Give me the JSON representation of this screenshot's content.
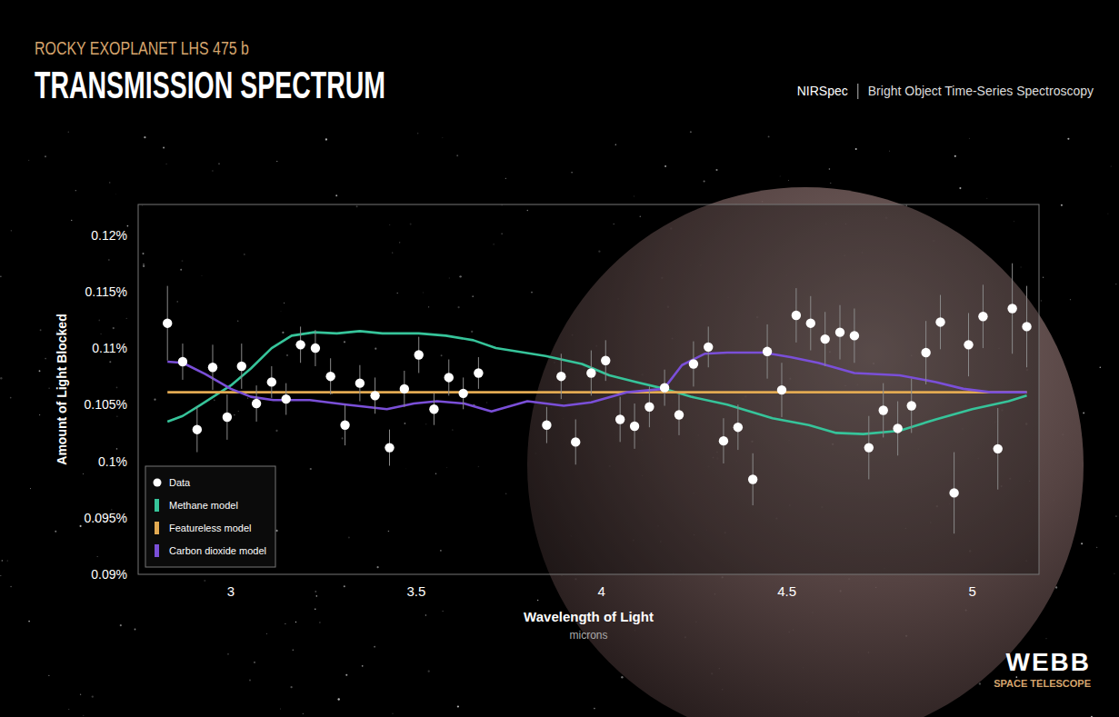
{
  "chart_data": {
    "type": "scatter",
    "subtitle": "ROCKY EXOPLANET LHS 475 b",
    "title": "TRANSMISSION SPECTRUM",
    "annotations": [
      "NIRSpec",
      "Bright Object Time-Series Spectroscopy",
      "WEBB",
      "SPACE TELESCOPE"
    ],
    "x_label": "Wavelength of Light",
    "x_unit_label": "microns",
    "y_label": "Amount of Light Blocked",
    "xlim": [
      2.75,
      5.18
    ],
    "ylim": [
      0.09,
      0.1227
    ],
    "xticks": [
      3,
      3.5,
      4,
      4.5,
      5
    ],
    "yticks": [
      {
        "value": 0.09,
        "label": "0.09%"
      },
      {
        "value": 0.095,
        "label": "0.095%"
      },
      {
        "value": 0.1,
        "label": "0.1%"
      },
      {
        "value": 0.105,
        "label": "0.105%"
      },
      {
        "value": 0.11,
        "label": "0.11%"
      },
      {
        "value": 0.115,
        "label": "0.115%"
      },
      {
        "value": 0.12,
        "label": "0.12%"
      }
    ],
    "grid": false,
    "legend": "lower left",
    "series": [
      {
        "name": "Data",
        "type": "scatter",
        "marker": "circle",
        "color": "#ffffff",
        "x": [
          2.829,
          2.87,
          2.909,
          2.951,
          2.99,
          3.029,
          3.069,
          3.11,
          3.149,
          3.188,
          3.228,
          3.269,
          3.308,
          3.348,
          3.389,
          3.428,
          3.468,
          3.507,
          3.548,
          3.588,
          3.627,
          3.668,
          3.852,
          3.891,
          3.93,
          3.972,
          4.011,
          4.05,
          4.089,
          4.129,
          4.17,
          4.209,
          4.248,
          4.288,
          4.329,
          4.368,
          4.408,
          4.447,
          4.486,
          4.525,
          4.564,
          4.603,
          4.643,
          4.682,
          4.721,
          4.76,
          4.799,
          4.836,
          4.875,
          4.914,
          4.951,
          4.99,
          5.029,
          5.069,
          5.108,
          5.147
        ],
        "values": [
          0.1122,
          0.1088,
          0.1028,
          0.1083,
          0.1039,
          0.1084,
          0.1051,
          0.107,
          0.1055,
          0.1103,
          0.11,
          0.1075,
          0.1032,
          0.1069,
          0.1058,
          0.1012,
          0.1064,
          0.1094,
          0.1046,
          0.1074,
          0.106,
          0.1078,
          0.1032,
          0.1075,
          0.1017,
          0.1078,
          0.1089,
          0.1037,
          0.1031,
          0.1048,
          0.1065,
          0.1041,
          0.1086,
          0.1101,
          0.1018,
          0.103,
          0.0984,
          0.1097,
          0.1063,
          0.1129,
          0.1122,
          0.1108,
          0.1114,
          0.1111,
          0.1012,
          0.1045,
          0.1029,
          0.1049,
          0.1096,
          0.1123,
          0.0972,
          0.1103,
          0.1128,
          0.1011,
          0.1135,
          0.1119
        ],
        "errors": [
          0.0033,
          0.0016,
          0.002,
          0.002,
          0.002,
          0.002,
          0.0016,
          0.0014,
          0.0014,
          0.0016,
          0.0016,
          0.0016,
          0.0018,
          0.0016,
          0.0016,
          0.0016,
          0.0016,
          0.0016,
          0.0014,
          0.0016,
          0.0014,
          0.0014,
          0.0016,
          0.002,
          0.002,
          0.002,
          0.0018,
          0.002,
          0.002,
          0.0018,
          0.0016,
          0.0018,
          0.002,
          0.0018,
          0.002,
          0.002,
          0.0023,
          0.0024,
          0.0024,
          0.0024,
          0.0024,
          0.0024,
          0.0024,
          0.0024,
          0.0028,
          0.0024,
          0.0024,
          0.0024,
          0.0028,
          0.0024,
          0.0036,
          0.0028,
          0.0028,
          0.0036,
          0.004,
          0.0036
        ]
      },
      {
        "name": "Methane model",
        "type": "line",
        "line_style": "solid",
        "color": "#36c49a",
        "x": [
          2.829,
          2.87,
          2.919,
          3,
          3.054,
          3.11,
          3.164,
          3.225,
          3.286,
          3.348,
          3.409,
          3.507,
          3.58,
          3.654,
          3.715,
          3.849,
          3.947,
          4.021,
          4.094,
          4.17,
          4.241,
          4.339,
          4.461,
          4.559,
          4.633,
          4.706,
          4.804,
          4.902,
          5,
          5.098,
          5.147
        ],
        "values": [
          0.1035,
          0.104,
          0.105,
          0.1067,
          0.1082,
          0.11,
          0.1111,
          0.1114,
          0.1113,
          0.1115,
          0.1113,
          0.1113,
          0.1111,
          0.1107,
          0.11,
          0.1093,
          0.1086,
          0.1076,
          0.107,
          0.1064,
          0.1057,
          0.105,
          0.1038,
          0.1032,
          0.1025,
          0.1024,
          0.1027,
          0.1037,
          0.1046,
          0.1053,
          0.1058
        ]
      },
      {
        "name": "Featureless model",
        "type": "line",
        "line_style": "solid",
        "color": "#e2aa52",
        "x": [
          2.829,
          5.147
        ],
        "values": [
          0.1061,
          0.1061
        ]
      },
      {
        "name": "Carbon dioxide model",
        "type": "line",
        "line_style": "solid",
        "color": "#7a4fd8",
        "x": [
          2.829,
          2.87,
          2.931,
          3,
          3.054,
          3.115,
          3.213,
          3.311,
          3.421,
          3.494,
          3.556,
          3.629,
          3.703,
          3.8,
          3.898,
          3.972,
          4.07,
          4.168,
          4.217,
          4.278,
          4.339,
          4.437,
          4.51,
          4.584,
          4.682,
          4.804,
          4.902,
          4.976,
          5.049,
          5.147
        ],
        "values": [
          0.1088,
          0.1087,
          0.1077,
          0.1064,
          0.1057,
          0.1054,
          0.1054,
          0.105,
          0.1046,
          0.1051,
          0.1053,
          0.1051,
          0.1044,
          0.1053,
          0.1049,
          0.1052,
          0.1061,
          0.1064,
          0.1085,
          0.1095,
          0.1096,
          0.1096,
          0.1092,
          0.1087,
          0.1078,
          0.1076,
          0.107,
          0.1064,
          0.1061,
          0.1061
        ]
      }
    ]
  }
}
